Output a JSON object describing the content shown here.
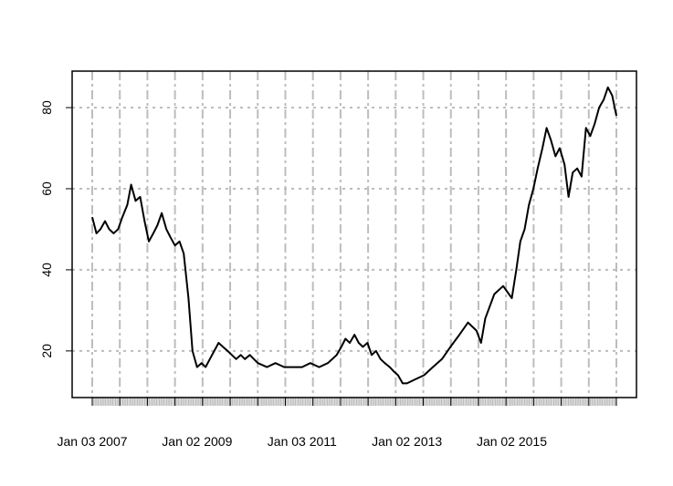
{
  "chart_data": {
    "type": "line",
    "title": "",
    "xlabel": "",
    "ylabel": "",
    "xlim": [
      "2007-01-03",
      "2016-12-30"
    ],
    "ylim": [
      8.5,
      89
    ],
    "grid": true,
    "legend": "none",
    "x_tick_labels": [
      "Jan 03 2007",
      "Jan 02 2009",
      "Jan 03 2011",
      "Jan 02 2013",
      "Jan 02 2015"
    ],
    "x_tick_dates": [
      "2007-01-03",
      "2009-01-02",
      "2011-01-03",
      "2013-01-02",
      "2015-01-02"
    ],
    "y_ticks": [
      20,
      40,
      60,
      80
    ],
    "y_tick_labels": [
      "20",
      "40",
      "60",
      "80"
    ],
    "series": [
      {
        "color": "#000000",
        "x": [
          "2007-01-03",
          "2007-02-01",
          "2007-03-01",
          "2007-04-02",
          "2007-05-01",
          "2007-06-01",
          "2007-07-02",
          "2007-08-01",
          "2007-09-04",
          "2007-10-01",
          "2007-11-01",
          "2007-12-03",
          "2008-01-02",
          "2008-02-01",
          "2008-03-03",
          "2008-04-01",
          "2008-05-01",
          "2008-06-02",
          "2008-07-01",
          "2008-08-01",
          "2008-09-02",
          "2008-10-01",
          "2008-11-03",
          "2008-12-01",
          "2009-01-02",
          "2009-02-02",
          "2009-03-02",
          "2009-04-01",
          "2009-05-01",
          "2009-06-01",
          "2009-07-01",
          "2009-08-03",
          "2009-09-01",
          "2009-10-01",
          "2009-11-02",
          "2009-12-01",
          "2010-01-04",
          "2010-03-01",
          "2010-05-03",
          "2010-07-01",
          "2010-09-01",
          "2010-11-01",
          "2011-01-03",
          "2011-03-01",
          "2011-05-02",
          "2011-07-01",
          "2011-08-01",
          "2011-09-01",
          "2011-10-03",
          "2011-11-01",
          "2011-12-01",
          "2012-01-03",
          "2012-02-01",
          "2012-03-01",
          "2012-04-02",
          "2012-05-01",
          "2012-06-01",
          "2012-07-02",
          "2012-08-01",
          "2012-09-04",
          "2012-10-01",
          "2012-11-01",
          "2012-12-03",
          "2013-01-02",
          "2013-03-01",
          "2013-05-01",
          "2013-07-01",
          "2013-09-03",
          "2013-11-01",
          "2014-01-02",
          "2014-03-03",
          "2014-05-01",
          "2014-06-02",
          "2014-07-01",
          "2014-09-02",
          "2014-11-03",
          "2015-01-02",
          "2015-02-02",
          "2015-03-02",
          "2015-04-01",
          "2015-05-01",
          "2015-06-01",
          "2015-07-01",
          "2015-08-03",
          "2015-09-01",
          "2015-10-01",
          "2015-11-02",
          "2015-12-01",
          "2016-01-04",
          "2016-02-01",
          "2016-03-01",
          "2016-04-01",
          "2016-05-02",
          "2016-06-01",
          "2016-07-01",
          "2016-08-01",
          "2016-09-01",
          "2016-10-03",
          "2016-11-01",
          "2016-12-01",
          "2016-12-30"
        ],
        "values": [
          53,
          49,
          50,
          52,
          50,
          49,
          50,
          53,
          56,
          61,
          57,
          58,
          52,
          47,
          49,
          51,
          54,
          50,
          48,
          46,
          47,
          44,
          33,
          20,
          16,
          17,
          16,
          18,
          20,
          22,
          21,
          20,
          19,
          18,
          19,
          18,
          19,
          17,
          16,
          17,
          16,
          16,
          16,
          17,
          16,
          17,
          18,
          19,
          21,
          23,
          22,
          24,
          22,
          21,
          22,
          19,
          20,
          18,
          17,
          16,
          15,
          14,
          12,
          12,
          13,
          14,
          16,
          18,
          21,
          24,
          27,
          25,
          22,
          28,
          34,
          36,
          33,
          40,
          47,
          50,
          56,
          60,
          65,
          70,
          75,
          72,
          68,
          70,
          66,
          58,
          64,
          65,
          63,
          75,
          73,
          76,
          80,
          82,
          85,
          83,
          78
        ]
      }
    ]
  }
}
